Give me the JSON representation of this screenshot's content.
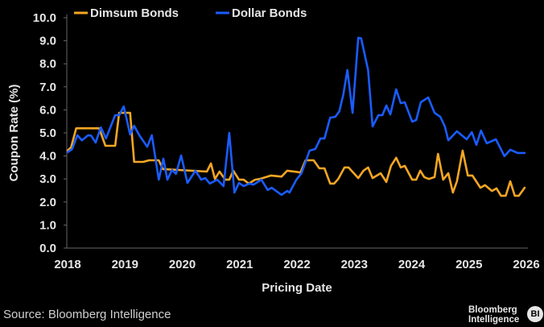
{
  "chart_data": {
    "type": "line",
    "xlabel": "Pricing Date",
    "ylabel": "Coupon Rate (%)",
    "xlim": [
      2018,
      2026
    ],
    "ylim": [
      0,
      10
    ],
    "x_ticks": [
      "2018",
      "2019",
      "2020",
      "2021",
      "2022",
      "2023",
      "2024",
      "2025",
      "2026"
    ],
    "y_ticks": [
      "0.0",
      "1.0",
      "2.0",
      "3.0",
      "4.0",
      "5.0",
      "6.0",
      "7.0",
      "8.0",
      "9.0",
      "10.0"
    ],
    "grid": false,
    "legend": "top-left",
    "series": [
      {
        "name": "Dimsum Bonds",
        "color": "#f5a623",
        "x": [
          2018.0,
          2018.06,
          2018.15,
          2018.55,
          2018.66,
          2018.83,
          2018.9,
          2019.09,
          2019.16,
          2019.32,
          2019.42,
          2019.59,
          2019.66,
          2020.43,
          2020.5,
          2020.57,
          2020.65,
          2020.75,
          2020.82,
          2020.89,
          2020.99,
          2021.07,
          2021.16,
          2021.27,
          2021.35,
          2021.55,
          2021.73,
          2021.83,
          2022.01,
          2022.06,
          2022.15,
          2022.29,
          2022.39,
          2022.48,
          2022.58,
          2022.65,
          2022.72,
          2022.83,
          2022.9,
          2023.07,
          2023.16,
          2023.24,
          2023.32,
          2023.46,
          2023.56,
          2023.64,
          2023.73,
          2023.81,
          2023.88,
          2024.01,
          2024.08,
          2024.15,
          2024.22,
          2024.3,
          2024.4,
          2024.46,
          2024.55,
          2024.64,
          2024.72,
          2024.79,
          2024.89,
          2024.98,
          2025.06,
          2025.2,
          2025.28,
          2025.4,
          2025.48,
          2025.56,
          2025.64,
          2025.72,
          2025.8,
          2025.87,
          2025.97
        ],
        "y": [
          4.23,
          4.37,
          5.2,
          5.2,
          4.44,
          4.44,
          5.87,
          5.87,
          3.74,
          3.74,
          3.81,
          3.81,
          3.43,
          3.32,
          3.67,
          3.0,
          3.32,
          2.97,
          2.97,
          3.36,
          2.97,
          2.97,
          2.8,
          2.97,
          3.0,
          3.15,
          3.1,
          3.36,
          3.3,
          3.28,
          3.81,
          3.81,
          3.46,
          3.46,
          2.8,
          2.8,
          3.0,
          3.5,
          3.5,
          3.04,
          3.36,
          3.5,
          3.04,
          3.25,
          2.87,
          3.57,
          3.92,
          3.5,
          3.57,
          2.97,
          2.97,
          3.36,
          3.08,
          3.0,
          3.08,
          4.09,
          2.97,
          3.25,
          2.41,
          2.9,
          4.23,
          3.15,
          3.15,
          2.62,
          2.73,
          2.48,
          2.59,
          2.27,
          2.27,
          2.9,
          2.27,
          2.27,
          2.62
        ]
      },
      {
        "name": "Dollar Bonds",
        "color": "#1a5cff",
        "x": [
          2018.0,
          2018.08,
          2018.17,
          2018.25,
          2018.36,
          2018.41,
          2018.49,
          2018.58,
          2018.67,
          2018.83,
          2018.9,
          2018.98,
          2019.09,
          2019.16,
          2019.25,
          2019.39,
          2019.47,
          2019.59,
          2019.67,
          2019.74,
          2019.82,
          2019.89,
          2019.98,
          2020.09,
          2020.23,
          2020.33,
          2020.4,
          2020.48,
          2020.61,
          2020.72,
          2020.82,
          2020.91,
          2020.99,
          2021.07,
          2021.17,
          2021.24,
          2021.38,
          2021.49,
          2021.56,
          2021.73,
          2021.83,
          2021.87,
          2021.99,
          2022.08,
          2022.22,
          2022.32,
          2022.41,
          2022.48,
          2022.58,
          2022.67,
          2022.74,
          2022.81,
          2022.88,
          2022.97,
          2023.07,
          2023.12,
          2023.24,
          2023.32,
          2023.42,
          2023.49,
          2023.56,
          2023.63,
          2023.73,
          2023.81,
          2023.88,
          2024.01,
          2024.08,
          2024.16,
          2024.29,
          2024.4,
          2024.5,
          2024.58,
          2024.64,
          2024.79,
          2024.96,
          2025.05,
          2025.13,
          2025.21,
          2025.31,
          2025.47,
          2025.62,
          2025.72,
          2025.85,
          2025.97
        ],
        "y": [
          4.16,
          4.3,
          4.9,
          4.68,
          4.9,
          4.88,
          4.58,
          5.24,
          4.76,
          5.77,
          5.77,
          6.15,
          4.93,
          5.31,
          4.9,
          4.4,
          4.9,
          2.97,
          3.88,
          2.97,
          3.39,
          3.22,
          4.02,
          2.83,
          3.36,
          2.97,
          3.04,
          2.8,
          2.97,
          2.69,
          5.0,
          2.41,
          2.83,
          2.69,
          2.8,
          2.75,
          2.97,
          2.52,
          2.62,
          2.31,
          2.48,
          2.41,
          2.97,
          3.25,
          4.23,
          4.3,
          4.76,
          4.76,
          5.66,
          5.7,
          5.94,
          6.68,
          7.73,
          5.87,
          9.13,
          9.1,
          7.73,
          5.28,
          5.77,
          5.77,
          6.19,
          5.8,
          6.89,
          6.29,
          6.33,
          5.49,
          5.56,
          6.33,
          6.54,
          5.87,
          5.7,
          5.28,
          4.68,
          5.07,
          4.72,
          5.03,
          4.48,
          5.1,
          4.55,
          4.72,
          3.99,
          4.27,
          4.13,
          4.13
        ]
      }
    ]
  },
  "source": "Source: Bloomberg Intelligence",
  "logo": {
    "line1": "Bloomberg",
    "line2": "Intelligence",
    "badge": "BI"
  }
}
